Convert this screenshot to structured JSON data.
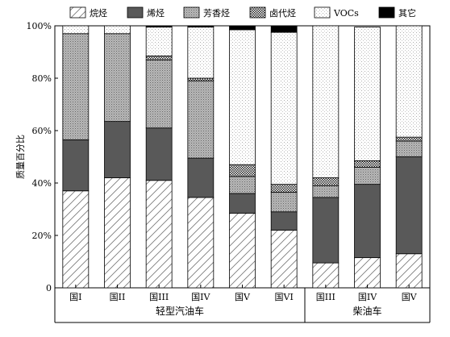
{
  "chart_data": {
    "type": "bar",
    "stacked": true,
    "title": "",
    "xlabel": "",
    "ylabel": "质量百分比",
    "ylim": [
      0,
      100
    ],
    "yticks": [
      "0",
      "20%",
      "40%",
      "60%",
      "80%",
      "100%"
    ],
    "categories": [
      "国I",
      "国II",
      "国III",
      "国IV",
      "国V",
      "国VI",
      "国III",
      "国IV",
      "国V"
    ],
    "groups": [
      {
        "label": "轻型汽油车",
        "categories": [
          0,
          1,
          2,
          3,
          4,
          5
        ]
      },
      {
        "label": "柴油车",
        "categories": [
          6,
          7,
          8
        ]
      }
    ],
    "series": [
      {
        "name": "烷烃",
        "pattern": "diagonal-hatch",
        "color": "#ffffff",
        "values": [
          37,
          42,
          41,
          34.5,
          28.5,
          22,
          9.5,
          11.5,
          13
        ]
      },
      {
        "name": "烯烃",
        "pattern": "solid",
        "color": "#595959",
        "values": [
          19.5,
          21.5,
          20,
          15,
          7.5,
          7,
          25,
          28,
          37
        ]
      },
      {
        "name": "芳香烃",
        "pattern": "fine-dots",
        "color": "#a6a6a6",
        "values": [
          40.5,
          33.5,
          26,
          29.5,
          6.5,
          7.5,
          4.5,
          6.5,
          6
        ]
      },
      {
        "name": "卤代烃",
        "pattern": "checker",
        "color": "#6e6e6e",
        "values": [
          0,
          0,
          1.5,
          1,
          4.5,
          3,
          3,
          2.5,
          1.5
        ]
      },
      {
        "name": "VOCs",
        "pattern": "sparse-dots",
        "color": "#ffffff",
        "values": [
          3,
          3,
          11,
          19.5,
          51.5,
          58,
          58,
          51,
          42.5
        ]
      },
      {
        "name": "其它",
        "pattern": "solid",
        "color": "#000000",
        "values": [
          0,
          0,
          0.5,
          0.5,
          1.5,
          2.5,
          0,
          0,
          0
        ]
      }
    ],
    "legend": {
      "position": "top"
    },
    "grid": false
  }
}
